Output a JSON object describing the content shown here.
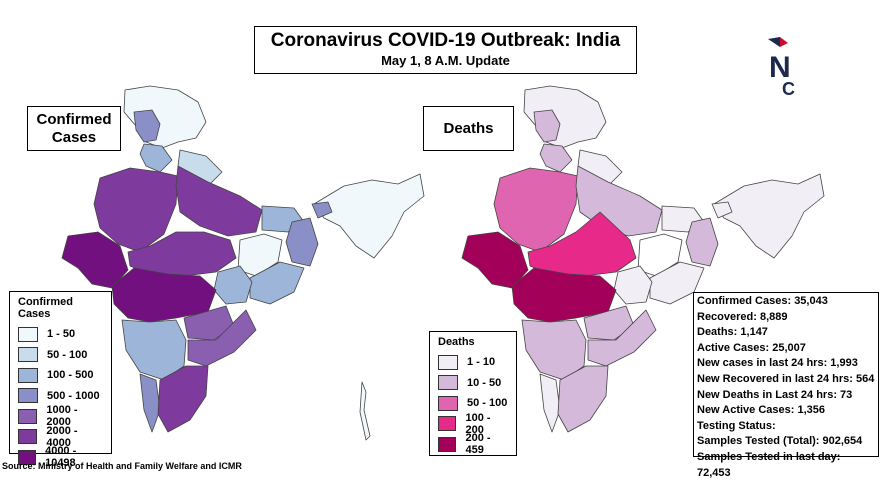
{
  "title": {
    "main": "Coronavirus COVID-19 Outbreak: India",
    "sub": "May 1, 8 A.M. Update"
  },
  "left_map": {
    "label_line1": "Confirmed",
    "label_line2": "Cases",
    "legend_title": "Confirmed Cases",
    "legend": [
      {
        "range": "1 - 50",
        "color": "#f1f8fb"
      },
      {
        "range": "50 - 100",
        "color": "#c8dcec"
      },
      {
        "range": "100 - 500",
        "color": "#9db5d8"
      },
      {
        "range": "500 - 1000",
        "color": "#8a8fc8"
      },
      {
        "range": "1000 - 2000",
        "color": "#8a5fb0"
      },
      {
        "range": "2000 - 4000",
        "color": "#7f3a9e"
      },
      {
        "range": "4000 - 10498",
        "color": "#72107f"
      }
    ]
  },
  "right_map": {
    "label": "Deaths",
    "legend_title": "Deaths",
    "legend": [
      {
        "range": "1 - 10",
        "color": "#f1eef6"
      },
      {
        "range": "10 - 50",
        "color": "#d4b9da"
      },
      {
        "range": "50 - 100",
        "color": "#df65b0"
      },
      {
        "range": "100 - 200",
        "color": "#e7298a"
      },
      {
        "range": "200 - 459",
        "color": "#a3005a"
      }
    ]
  },
  "stats": [
    "Confirmed Cases: 35,043",
    "Recovered: 8,889",
    "Deaths: 1,147",
    "Active Cases:  25,007",
    "New cases in last 24 hrs: 1,993",
    "New Recovered in last 24 hrs: 564",
    "New Deaths in Last 24 hrs: 73",
    "New Active Cases: 1,356",
    "Testing Status:",
    "Samples Tested (Total): 902,654",
    "Samples Tested in last day: 72,453"
  ],
  "source": "Source: Ministry of Health and Family Welfare  and ICMR",
  "logo": {
    "letter_n": "N",
    "letter_c": "C",
    "color_navy": "#1d2a4d",
    "color_red": "#c8102e"
  }
}
